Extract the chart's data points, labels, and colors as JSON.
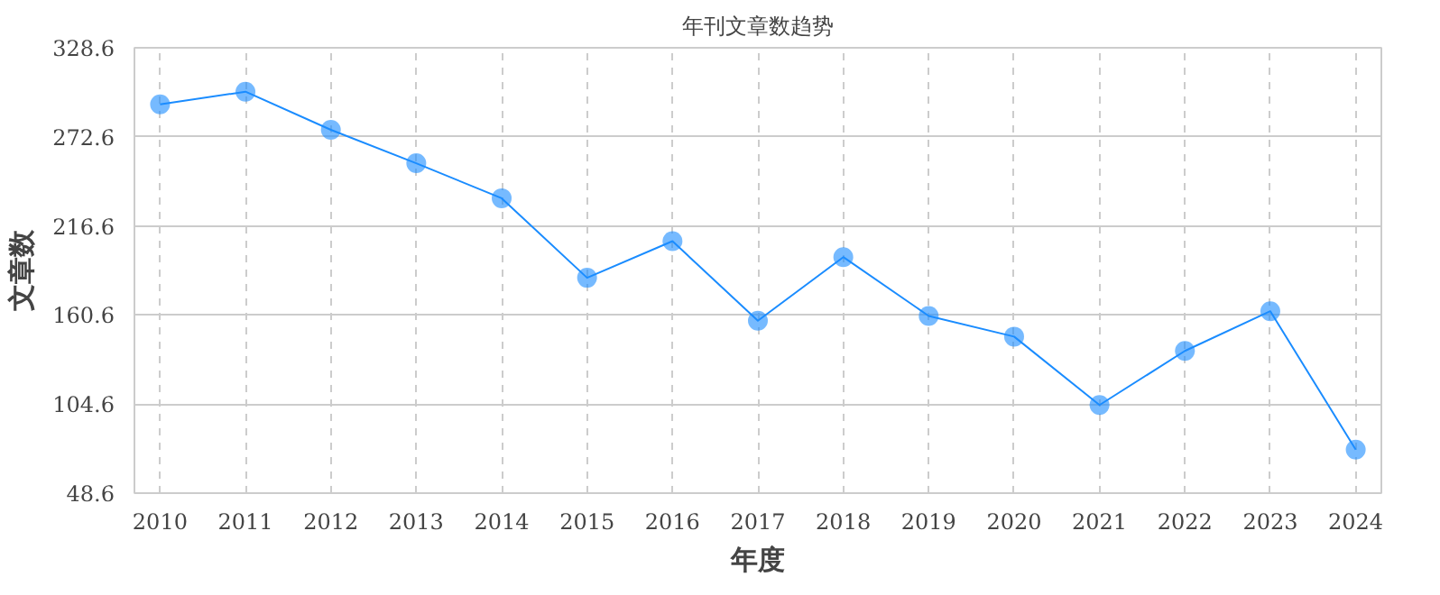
{
  "chart_data": {
    "type": "line",
    "title": "年刊文章数趋势",
    "xlabel": "年度",
    "ylabel": "文章数",
    "x": [
      2010,
      2011,
      2012,
      2013,
      2014,
      2015,
      2016,
      2017,
      2018,
      2019,
      2020,
      2021,
      2022,
      2023,
      2024
    ],
    "series": [
      {
        "color": "#1a8cff",
        "values": [
          293,
          301,
          277,
          256,
          234,
          184,
          207,
          157,
          197,
          160,
          147,
          104,
          138,
          163,
          76
        ]
      }
    ],
    "xlim": [
      2009.7,
      2024.3
    ],
    "xticks": [
      2010,
      2011,
      2012,
      2013,
      2014,
      2015,
      2016,
      2017,
      2018,
      2019,
      2020,
      2021,
      2022,
      2023,
      2024
    ],
    "ylim": [
      48.6,
      328.6
    ],
    "yticks": [
      48.6,
      104.6,
      160.6,
      216.6,
      272.6,
      328.6
    ],
    "grid": true,
    "marker": "circle",
    "line_style": "solid"
  }
}
